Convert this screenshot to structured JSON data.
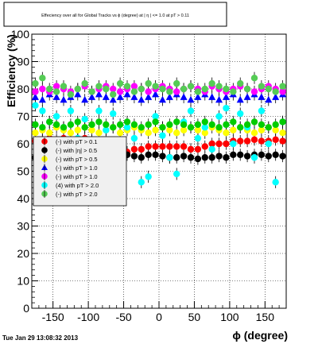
{
  "chart_data": {
    "type": "scatter",
    "title": "Effeciency over all for Global Tracks vs ϕ (degree) at | η | <= 1.0 at pT > 0.11",
    "xlabel": "ϕ (degree)",
    "ylabel": "Efficiency (%)",
    "xlim": [
      -180,
      180
    ],
    "ylim": [
      0,
      100
    ],
    "x_ticks": [
      -150,
      -100,
      -50,
      0,
      50,
      100,
      150
    ],
    "y_ticks": [
      0,
      10,
      20,
      30,
      40,
      50,
      60,
      70,
      80,
      90,
      100
    ],
    "grid": true,
    "legend_position": "left-middle",
    "footer": "Tue Jan 29 13:08:32 2013",
    "series": [
      {
        "name": "(-) with pT > 0.1",
        "color": "#ff0000",
        "marker": "circle",
        "x": [
          -175,
          -165,
          -155,
          -145,
          -135,
          -125,
          -115,
          -105,
          -95,
          -85,
          -75,
          -65,
          -55,
          -45,
          -35,
          -25,
          -15,
          -5,
          5,
          15,
          25,
          35,
          45,
          55,
          65,
          75,
          85,
          95,
          105,
          115,
          125,
          135,
          145,
          155,
          165,
          175
        ],
        "y": [
          61,
          61.5,
          62,
          61.5,
          62,
          61,
          61.5,
          62,
          61,
          60,
          59,
          57,
          56,
          57,
          58,
          58,
          59,
          59,
          59,
          59,
          59,
          59,
          58,
          58,
          59,
          60,
          60,
          60,
          61,
          61,
          61,
          61.5,
          61,
          61,
          61.5,
          61
        ]
      },
      {
        "name": "(-) with |η| > 0.5",
        "color": "#000000",
        "marker": "circle",
        "x": [
          -175,
          -165,
          -155,
          -145,
          -135,
          -125,
          -115,
          -105,
          -95,
          -85,
          -75,
          -65,
          -55,
          -45,
          -35,
          -25,
          -15,
          -5,
          5,
          15,
          25,
          35,
          45,
          55,
          65,
          75,
          85,
          95,
          105,
          115,
          125,
          135,
          145,
          155,
          165,
          175
        ],
        "y": [
          55,
          55.5,
          56,
          55.5,
          56,
          56,
          55.5,
          56,
          55,
          55,
          54,
          54,
          55,
          56,
          55.5,
          55,
          56,
          56,
          55.5,
          55,
          55,
          55.5,
          55,
          54.5,
          55,
          55,
          55.5,
          55,
          56,
          56,
          55.5,
          56,
          56,
          55.5,
          56,
          55.5
        ]
      },
      {
        "name": "(-) with pT > 0.5",
        "color": "#ffff00",
        "marker": "circle",
        "x": [
          -175,
          -165,
          -155,
          -145,
          -135,
          -125,
          -115,
          -105,
          -95,
          -85,
          -75,
          -65,
          -55,
          -45,
          -35,
          -25,
          -15,
          -5,
          5,
          15,
          25,
          35,
          45,
          55,
          65,
          75,
          85,
          95,
          105,
          115,
          125,
          135,
          145,
          155,
          165,
          175
        ],
        "y": [
          64,
          65,
          64,
          66,
          65,
          64,
          65,
          66,
          65,
          64,
          65,
          66,
          64,
          65,
          66,
          65,
          64,
          65,
          66,
          65,
          64,
          65,
          66,
          65,
          64,
          66,
          65,
          64,
          65,
          66,
          65,
          64,
          65,
          66,
          65,
          64
        ]
      },
      {
        "name": "(-) with pT > 1.0",
        "color": "#0000ff",
        "marker": "triangle",
        "x": [
          -175,
          -165,
          -155,
          -145,
          -135,
          -125,
          -115,
          -105,
          -95,
          -85,
          -75,
          -65,
          -55,
          -45,
          -35,
          -25,
          -15,
          -5,
          5,
          15,
          25,
          35,
          45,
          55,
          65,
          75,
          85,
          95,
          105,
          115,
          125,
          135,
          145,
          155,
          165,
          175
        ],
        "y": [
          77,
          76,
          78,
          77,
          76,
          77,
          78,
          76,
          77,
          78,
          77,
          76,
          77,
          78,
          77,
          76,
          77,
          78,
          76,
          77,
          78,
          77,
          76,
          77,
          78,
          77,
          76,
          77,
          78,
          76,
          77,
          78,
          77,
          76,
          77,
          78
        ]
      },
      {
        "name": "(-) with pT > 1.0",
        "color": "#ff00ff",
        "marker": "circle",
        "x": [
          -175,
          -165,
          -155,
          -145,
          -135,
          -125,
          -115,
          -105,
          -95,
          -85,
          -75,
          -65,
          -55,
          -45,
          -35,
          -25,
          -15,
          -5,
          5,
          15,
          25,
          35,
          45,
          55,
          65,
          75,
          85,
          95,
          105,
          115,
          125,
          135,
          145,
          155,
          165,
          175
        ],
        "y": [
          79,
          80,
          79,
          81,
          80,
          79,
          80,
          81,
          79,
          80,
          81,
          80,
          79,
          80,
          81,
          80,
          79,
          80,
          81,
          80,
          79,
          80,
          81,
          80,
          79,
          81,
          80,
          79,
          80,
          81,
          80,
          79,
          80,
          81,
          80,
          79
        ]
      },
      {
        "name": "(4) with pT > 2.0",
        "color": "#00ffff",
        "marker": "circle",
        "x": [
          -175,
          -165,
          -155,
          -145,
          -135,
          -125,
          -115,
          -105,
          -95,
          -85,
          -75,
          -65,
          -55,
          -45,
          -35,
          -25,
          -15,
          -5,
          5,
          15,
          25,
          35,
          45,
          55,
          65,
          75,
          85,
          95,
          105,
          115,
          125,
          135,
          145,
          155,
          165,
          175
        ],
        "y": [
          74,
          72,
          68,
          70,
          66,
          72,
          62,
          69,
          60,
          72,
          65,
          71,
          58,
          66,
          62,
          46,
          48,
          70,
          63,
          55,
          49,
          68,
          72,
          62,
          66,
          58,
          70,
          73,
          60,
          71,
          66,
          55,
          72,
          60,
          46,
          68
        ]
      },
      {
        "name": "(-) with pT > 2.0",
        "color": "#55cc55",
        "marker": "circle",
        "x": [
          -175,
          -165,
          -155,
          -145,
          -135,
          -125,
          -115,
          -105,
          -95,
          -85,
          -75,
          -65,
          -55,
          -45,
          -35,
          -25,
          -15,
          -5,
          5,
          15,
          25,
          35,
          45,
          55,
          65,
          75,
          85,
          95,
          105,
          115,
          125,
          135,
          145,
          155,
          165,
          175
        ],
        "y": [
          82,
          84,
          80,
          79,
          81,
          78,
          80,
          82,
          79,
          81,
          80,
          78,
          82,
          81,
          79,
          80,
          82,
          81,
          80,
          79,
          82,
          80,
          81,
          79,
          80,
          82,
          81,
          80,
          79,
          82,
          80,
          84,
          81,
          80,
          79,
          81
        ]
      },
      {
        "name": "",
        "color": "#00cc00",
        "marker": "circle",
        "x": [
          -175,
          -165,
          -155,
          -145,
          -135,
          -125,
          -115,
          -105,
          -95,
          -85,
          -75,
          -65,
          -55,
          -45,
          -35,
          -25,
          -15,
          -5,
          5,
          15,
          25,
          35,
          45,
          55,
          65,
          75,
          85,
          95,
          105,
          115,
          125,
          135,
          145,
          155,
          165,
          175
        ],
        "y": [
          67,
          66,
          68,
          67,
          66,
          67,
          68,
          66,
          67,
          68,
          67,
          66,
          67,
          68,
          67,
          66,
          67,
          68,
          66,
          67,
          68,
          67,
          66,
          67,
          68,
          67,
          66,
          67,
          68,
          66,
          67,
          68,
          67,
          66,
          67,
          68
        ]
      }
    ]
  }
}
